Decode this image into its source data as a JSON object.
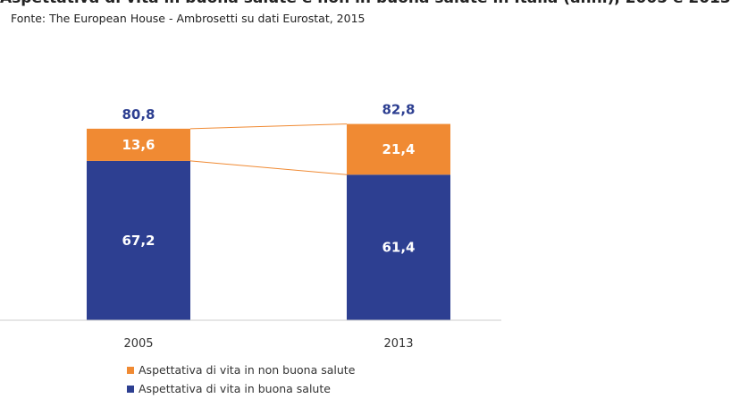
{
  "title_partial": "Aspettativa di vita in buona salute e non in buona salute in Italia (anni), 2005 e 2013",
  "subtitle": "Fonte: The European House - Ambrosetti su dati Eurostat, 2015",
  "chart_data": {
    "type": "bar",
    "stacked": true,
    "categories": [
      "2005",
      "2013"
    ],
    "series": [
      {
        "name": "Aspettativa di vita in buona salute",
        "values": [
          67.2,
          61.4
        ],
        "labels": [
          "67,2",
          "61,4"
        ],
        "color": "#2d3f91"
      },
      {
        "name": "Aspettativa di vita in non buona salute",
        "values": [
          13.6,
          21.4
        ],
        "labels": [
          "13,6",
          "21,4"
        ],
        "color": "#f08a33"
      }
    ],
    "totals": [
      80.8,
      82.8
    ],
    "total_labels": [
      "80,8",
      "82,8"
    ],
    "total_label_color": "#2d3f91",
    "connector_color": "#f08a33",
    "legend": {
      "position": "bottom",
      "order": [
        "Aspettativa di vita in non buona salute",
        "Aspettativa di vita in buona salute"
      ]
    }
  }
}
